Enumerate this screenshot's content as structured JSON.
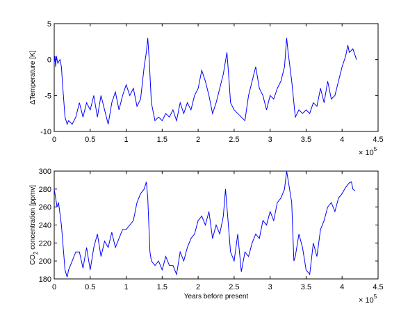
{
  "chart_data": [
    {
      "type": "line",
      "ylabel": "ΔTemperature  [K]",
      "color": "#0000ff",
      "x_multiplier": {
        "base": "× 10",
        "exponent": "5"
      },
      "xlim": [
        0,
        4.5
      ],
      "xticks": [
        0,
        0.5,
        1,
        1.5,
        2,
        2.5,
        3,
        3.5,
        4,
        4.5
      ],
      "ylim": [
        -10,
        5
      ],
      "yticks": [
        5,
        0,
        -5,
        -10
      ],
      "x": [
        0,
        0.01,
        0.02,
        0.03,
        0.05,
        0.08,
        0.1,
        0.12,
        0.15,
        0.18,
        0.2,
        0.25,
        0.3,
        0.35,
        0.4,
        0.45,
        0.5,
        0.55,
        0.6,
        0.65,
        0.7,
        0.75,
        0.8,
        0.85,
        0.9,
        0.95,
        1.0,
        1.05,
        1.1,
        1.15,
        1.2,
        1.25,
        1.28,
        1.3,
        1.32,
        1.35,
        1.4,
        1.45,
        1.5,
        1.55,
        1.6,
        1.65,
        1.7,
        1.75,
        1.8,
        1.85,
        1.9,
        1.95,
        2.0,
        2.05,
        2.1,
        2.15,
        2.2,
        2.25,
        2.3,
        2.35,
        2.4,
        2.43,
        2.45,
        2.5,
        2.55,
        2.6,
        2.65,
        2.7,
        2.75,
        2.8,
        2.85,
        2.9,
        2.95,
        3.0,
        3.05,
        3.1,
        3.15,
        3.2,
        3.23,
        3.25,
        3.3,
        3.35,
        3.4,
        3.45,
        3.5,
        3.55,
        3.6,
        3.65,
        3.7,
        3.75,
        3.8,
        3.85,
        3.9,
        3.95,
        4.0,
        4.05,
        4.08,
        4.1,
        4.15,
        4.2
      ],
      "values": [
        -0.5,
        0.5,
        -1,
        0.5,
        -0.5,
        0,
        -1,
        -4,
        -8,
        -9,
        -8.5,
        -9,
        -8,
        -6,
        -8,
        -6,
        -7,
        -5,
        -8,
        -5,
        -7,
        -9,
        -6,
        -4.5,
        -7,
        -5,
        -3.5,
        -5,
        -4,
        -6.5,
        -5.5,
        -1,
        1,
        3,
        0,
        -6,
        -8.5,
        -8,
        -8.5,
        -7.5,
        -8,
        -7,
        -8.5,
        -6,
        -7.5,
        -6,
        -7,
        -5,
        -4,
        -1.5,
        -3,
        -5,
        -7.5,
        -6,
        -4,
        -2,
        1,
        -3,
        -6,
        -7,
        -7.5,
        -8,
        -8.5,
        -5,
        -3,
        -1,
        -4,
        -5,
        -7,
        -5,
        -5.5,
        -4,
        -3,
        -1,
        3,
        1,
        -3,
        -8,
        -7,
        -7.5,
        -7,
        -7.5,
        -6,
        -6.5,
        -4,
        -6,
        -3,
        -5.5,
        -5,
        -3,
        -1,
        0.5,
        2,
        1,
        1.5,
        0
      ]
    },
    {
      "type": "line",
      "ylabel": [
        "CO",
        "2",
        " concentration [ppmv]"
      ],
      "xlabel": "Years before present",
      "color": "#0000ff",
      "x_multiplier": {
        "base": "× 10",
        "exponent": "5"
      },
      "xlim": [
        0,
        4.5
      ],
      "xticks": [
        0,
        0.5,
        1,
        1.5,
        2,
        2.5,
        3,
        3.5,
        4,
        4.5
      ],
      "ylim": [
        180,
        300
      ],
      "yticks": [
        300,
        280,
        260,
        240,
        220,
        200,
        180
      ],
      "x": [
        0,
        0.02,
        0.04,
        0.06,
        0.1,
        0.15,
        0.18,
        0.2,
        0.25,
        0.3,
        0.35,
        0.4,
        0.45,
        0.5,
        0.55,
        0.6,
        0.65,
        0.7,
        0.75,
        0.8,
        0.85,
        0.9,
        0.95,
        1.0,
        1.05,
        1.1,
        1.15,
        1.2,
        1.25,
        1.28,
        1.3,
        1.33,
        1.35,
        1.4,
        1.45,
        1.5,
        1.55,
        1.6,
        1.65,
        1.7,
        1.75,
        1.8,
        1.85,
        1.9,
        1.95,
        2.0,
        2.05,
        2.1,
        2.15,
        2.2,
        2.25,
        2.3,
        2.35,
        2.38,
        2.4,
        2.45,
        2.5,
        2.55,
        2.6,
        2.65,
        2.7,
        2.75,
        2.8,
        2.85,
        2.9,
        2.95,
        3.0,
        3.05,
        3.1,
        3.15,
        3.2,
        3.23,
        3.25,
        3.3,
        3.33,
        3.35,
        3.4,
        3.45,
        3.5,
        3.55,
        3.6,
        3.65,
        3.7,
        3.75,
        3.8,
        3.85,
        3.9,
        3.95,
        4.0,
        4.05,
        4.1,
        4.13,
        4.15,
        4.18
      ],
      "values": [
        280,
        270,
        260,
        265,
        240,
        190,
        182,
        190,
        200,
        210,
        210,
        192,
        215,
        190,
        215,
        230,
        205,
        222,
        215,
        232,
        215,
        225,
        235,
        235,
        240,
        245,
        265,
        275,
        280,
        288,
        270,
        210,
        200,
        195,
        200,
        190,
        205,
        195,
        195,
        185,
        210,
        200,
        215,
        225,
        230,
        245,
        250,
        240,
        255,
        225,
        240,
        230,
        250,
        280,
        260,
        210,
        200,
        230,
        188,
        210,
        205,
        220,
        230,
        225,
        245,
        240,
        255,
        245,
        265,
        270,
        280,
        300,
        290,
        265,
        200,
        205,
        230,
        215,
        190,
        185,
        220,
        205,
        235,
        245,
        260,
        265,
        255,
        270,
        275,
        282,
        287,
        288,
        280,
        278
      ]
    }
  ]
}
